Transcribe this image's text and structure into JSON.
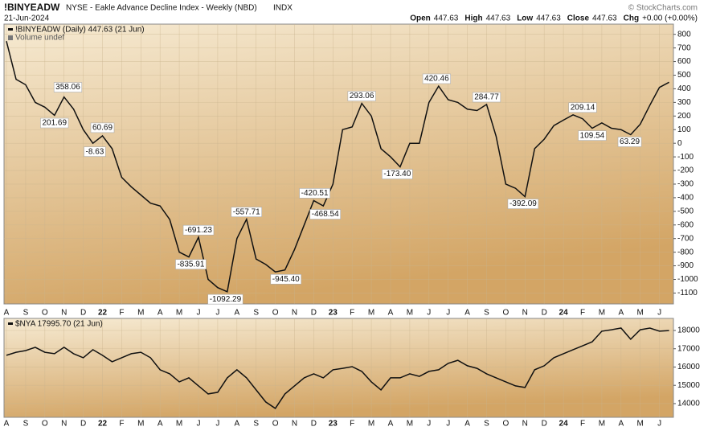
{
  "header": {
    "symbol": "!BINYEADW",
    "title": "NYSE - Eakle Advance Decline Index - Weekly (NBD)",
    "exchange": "INDX",
    "date": "21-Jun-2024",
    "copyright": "© StockCharts.com",
    "quote": [
      {
        "label": "Open",
        "value": "447.63"
      },
      {
        "label": "High",
        "value": "447.63"
      },
      {
        "label": "Low",
        "value": "447.63"
      },
      {
        "label": "Close",
        "value": "447.63"
      },
      {
        "label": "Chg",
        "value": "+0.00 (+0.00%)"
      }
    ]
  },
  "chart_data": [
    {
      "type": "line",
      "note": "Volume undef",
      "categories": [
        "A",
        null,
        "S",
        null,
        "O",
        null,
        "N",
        null,
        "D",
        null,
        "22",
        null,
        "F",
        null,
        "M",
        null,
        "A",
        null,
        "M",
        null,
        "J",
        null,
        "J",
        null,
        "A",
        null,
        "S",
        null,
        "O",
        null,
        "N",
        null,
        "D",
        null,
        "23",
        null,
        "F",
        null,
        "M",
        null,
        "A",
        null,
        "M",
        null,
        "J",
        null,
        "J",
        null,
        "A",
        null,
        "S",
        null,
        "O",
        null,
        "N",
        null,
        "D",
        null,
        "24",
        null,
        "F",
        null,
        "M",
        null,
        "A",
        null,
        "M",
        null,
        "J",
        null
      ],
      "series": [
        {
          "name": "!BINYEADW (Daily) 447.63 (21 Jun)",
          "color": "#111111",
          "values": [
            750,
            470,
            430,
            300,
            265,
            205,
            340,
            250,
            100,
            0,
            55,
            -40,
            -250,
            -320,
            -380,
            -440,
            -460,
            -560,
            -800,
            -835,
            -690,
            -1000,
            -1060,
            -1090,
            -700,
            -558,
            -850,
            -890,
            -945,
            -930,
            -780,
            -600,
            -421,
            -460,
            -300,
            100,
            120,
            293,
            200,
            -40,
            -100,
            -173,
            0,
            0,
            300,
            420,
            320,
            300,
            250,
            240,
            285,
            50,
            -300,
            -330,
            -392,
            -40,
            30,
            130,
            170,
            209,
            180,
            110,
            150,
            110,
            100,
            63,
            140,
            280,
            410,
            448
          ]
        }
      ],
      "annotations": [
        {
          "value": 358.06,
          "label": "358.06",
          "at": 6.4
        },
        {
          "value": 201.69,
          "label": "201.69",
          "at": 5.0
        },
        {
          "value": 60.69,
          "label": "60.69",
          "at": 10.0
        },
        {
          "value": -8.63,
          "label": "-8.63",
          "at": 9.2
        },
        {
          "value": -691.23,
          "label": "-691.23",
          "at": 20.0
        },
        {
          "value": -835.91,
          "label": "-835.91",
          "at": 19.2
        },
        {
          "value": -1092.29,
          "label": "-1092.29",
          "at": 22.8
        },
        {
          "value": -557.71,
          "label": "-557.71",
          "at": 25.0
        },
        {
          "value": -945.4,
          "label": "-945.40",
          "at": 29.1
        },
        {
          "value": -420.51,
          "label": "-420.51",
          "at": 32.1
        },
        {
          "value": -468.54,
          "label": "-468.54",
          "at": 33.2
        },
        {
          "value": 293.06,
          "label": "293.06",
          "at": 37.0
        },
        {
          "value": -173.4,
          "label": "-173.40",
          "at": 40.7
        },
        {
          "value": 420.46,
          "label": "420.46",
          "at": 44.8
        },
        {
          "value": 284.77,
          "label": "284.77",
          "at": 50.0
        },
        {
          "value": -392.09,
          "label": "-392.09",
          "at": 53.8
        },
        {
          "value": 209.14,
          "label": "209.14",
          "at": 60.0
        },
        {
          "value": 109.54,
          "label": "109.54",
          "at": 61.0
        },
        {
          "value": 63.29,
          "label": "63.29",
          "at": 64.9
        }
      ],
      "ylim": [
        -1180,
        875
      ],
      "yticks": [
        800,
        700,
        600,
        500,
        400,
        300,
        200,
        100,
        0,
        -100,
        -200,
        -300,
        -400,
        -500,
        -600,
        -700,
        -800,
        -900,
        -1000,
        -1100
      ],
      "grid": true
    },
    {
      "type": "line",
      "categories": [
        "A",
        null,
        "S",
        null,
        "O",
        null,
        "N",
        null,
        "D",
        null,
        "22",
        null,
        "F",
        null,
        "M",
        null,
        "A",
        null,
        "M",
        null,
        "J",
        null,
        "J",
        null,
        "A",
        null,
        "S",
        null,
        "O",
        null,
        "N",
        null,
        "D",
        null,
        "23",
        null,
        "F",
        null,
        "M",
        null,
        "A",
        null,
        "M",
        null,
        "J",
        null,
        "J",
        null,
        "A",
        null,
        "S",
        null,
        "O",
        null,
        "N",
        null,
        "D",
        null,
        "24",
        null,
        "F",
        null,
        "M",
        null,
        "A",
        null,
        "M",
        null,
        "J",
        null
      ],
      "series": [
        {
          "name": "$NYA 17995.70 (21 Jun)",
          "color": "#111111",
          "values": [
            16640,
            16810,
            16900,
            17080,
            16810,
            16730,
            17080,
            16730,
            16510,
            16950,
            16640,
            16290,
            16510,
            16730,
            16810,
            16510,
            15850,
            15630,
            15190,
            15410,
            14970,
            14530,
            14620,
            15410,
            15850,
            15410,
            14750,
            14090,
            13740,
            14530,
            14970,
            15410,
            15630,
            15410,
            15850,
            15930,
            16020,
            15760,
            15190,
            14750,
            15410,
            15410,
            15630,
            15490,
            15760,
            15850,
            16200,
            16370,
            16070,
            15930,
            15630,
            15410,
            15190,
            14970,
            14880,
            15850,
            16070,
            16510,
            16730,
            16950,
            17160,
            17380,
            17960,
            18040,
            18130,
            17520,
            18040,
            18130,
            17960,
            17996
          ]
        }
      ],
      "ylim": [
        13250,
        18660
      ],
      "yticks": [
        18000,
        17000,
        16000,
        15000,
        14000
      ],
      "grid": true
    }
  ]
}
